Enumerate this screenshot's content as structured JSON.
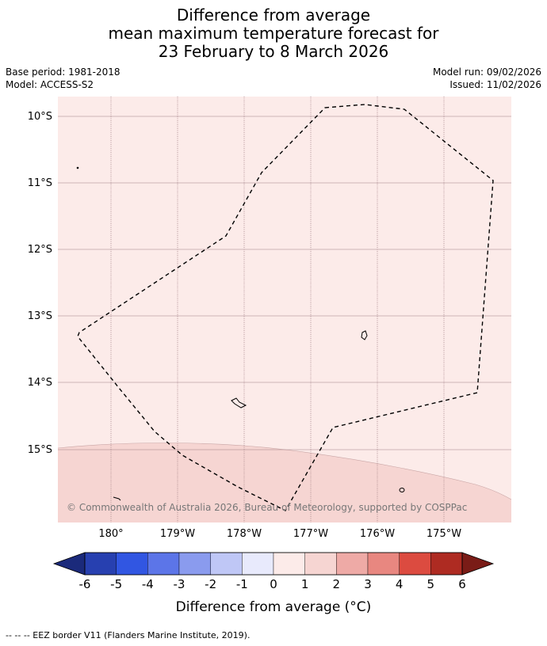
{
  "header": {
    "title_line1": "Difference from average",
    "title_line2": "mean maximum temperature forecast for",
    "title_line3": "23 February to 8 March 2026",
    "base_period": "Base period: 1981-2018",
    "model": "Model: ACCESS-S2",
    "model_run": "Model run: 09/02/2026",
    "issued": "Issued: 11/02/2026"
  },
  "map": {
    "lat_labels": [
      "10°S",
      "11°S",
      "12°S",
      "13°S",
      "14°S",
      "15°S"
    ],
    "lon_labels": [
      "180°",
      "179°W",
      "178°W",
      "177°W",
      "176°W",
      "175°W"
    ],
    "copyright": "© Commonwealth of Australia 2026, Bureau of Meteorology, supported by COSPPac",
    "colors": {
      "anomaly_0_to_1": "#fcebe9",
      "anomaly_1_to_2": "#f6d5d2",
      "gridline": "#a07e84",
      "eez_border": "#000000"
    }
  },
  "colorbar": {
    "ticks": [
      "-6",
      "-5",
      "-4",
      "-3",
      "-2",
      "-1",
      "0",
      "1",
      "2",
      "3",
      "4",
      "5",
      "6"
    ],
    "label": "Difference from average (°C)",
    "under_color": "#1b2a7b",
    "over_color": "#7a1c17",
    "colors": [
      "#2740b0",
      "#3156e2",
      "#5c75e8",
      "#8a9bee",
      "#bfc7f6",
      "#e8eafc",
      "#fcebe9",
      "#f6d5d2",
      "#eeaaa6",
      "#e88780",
      "#dc4b40",
      "#ae2b22"
    ]
  },
  "footer": {
    "legend_note": "--  --  -- EEZ border V11 (Flanders Marine Institute, 2019)."
  }
}
